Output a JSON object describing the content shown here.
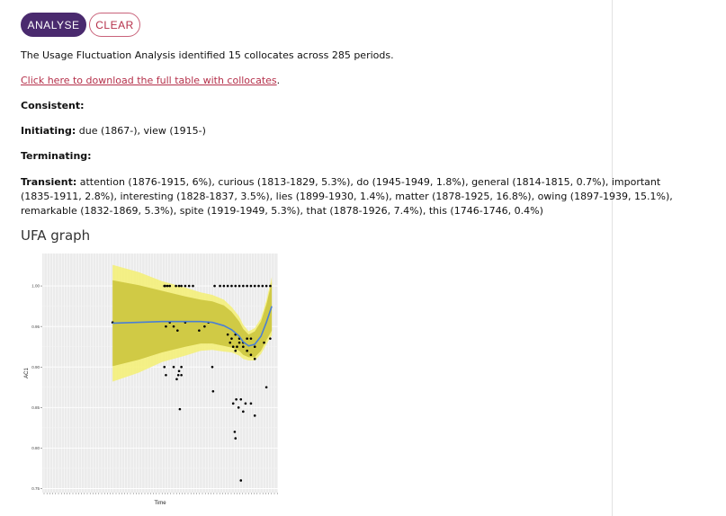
{
  "toolbar": {
    "analyse_label": "ANALYSE",
    "clear_label": "CLEAR"
  },
  "summary": "The Usage Fluctuation Analysis identified 15 collocates across 285 periods.",
  "download_link": "Click here to download the full table with collocates",
  "download_link_suffix": ".",
  "sections": {
    "consistent_label": "Consistent:",
    "consistent_value": "",
    "initiating_label": "Initiating:",
    "initiating_value": " due (1867-), view (1915-)",
    "terminating_label": "Terminating:",
    "terminating_value": "",
    "transient_label": "Transient:",
    "transient_value": " attention (1876-1915, 6%), curious (1813-1829, 5.3%), do (1945-1949, 1.8%), general (1814-1815, 0.7%), important (1835-1911, 2.8%), interesting (1828-1837, 3.5%), lies (1899-1930, 1.4%), matter (1878-1925, 16.8%), owing (1897-1939, 15.1%), remarkable (1832-1869, 5.3%), spite (1919-1949, 5.3%), that (1878-1926, 7.4%), this (1746-1746, 0.4%)"
  },
  "graph_title": "UFA graph",
  "chart_data": {
    "type": "scatter",
    "xlabel": "Time",
    "ylabel": "AC1",
    "yticks": [
      "0.75",
      "0.80",
      "0.85",
      "0.90",
      "0.95",
      "1.00"
    ],
    "ylim": [
      0.745,
      1.04
    ],
    "x_range": [
      1655,
      1960
    ],
    "grid": true,
    "smooth": {
      "x": [
        1746,
        1780,
        1810,
        1840,
        1860,
        1875,
        1890,
        1900,
        1910,
        1915,
        1922,
        1930,
        1938,
        1945,
        1952
      ],
      "y": [
        0.954,
        0.955,
        0.956,
        0.956,
        0.956,
        0.955,
        0.951,
        0.946,
        0.938,
        0.931,
        0.926,
        0.928,
        0.938,
        0.955,
        0.975
      ],
      "inner_band": [
        0.053,
        0.046,
        0.038,
        0.031,
        0.027,
        0.026,
        0.025,
        0.022,
        0.018,
        0.016,
        0.014,
        0.016,
        0.018,
        0.022,
        0.03
      ],
      "outer_band": [
        0.072,
        0.062,
        0.05,
        0.042,
        0.036,
        0.034,
        0.032,
        0.028,
        0.024,
        0.021,
        0.018,
        0.02,
        0.022,
        0.027,
        0.036
      ],
      "color": "#4a7fd4",
      "inner_band_color": "#c9c33a",
      "outer_band_color": "#f4f07a"
    },
    "points": {
      "x": [
        1746,
        1813,
        1814,
        1817,
        1820,
        1828,
        1832,
        1835,
        1840,
        1845,
        1850,
        1878,
        1885,
        1890,
        1895,
        1900,
        1905,
        1910,
        1915,
        1920,
        1925,
        1930,
        1935,
        1940,
        1945,
        1950,
        1815,
        1820,
        1825,
        1830,
        1840,
        1858,
        1865,
        1870,
        1895,
        1900,
        1905,
        1910,
        1915,
        1920,
        1925,
        1930,
        1942,
        1950,
        1813,
        1825,
        1832,
        1835,
        1875,
        1898,
        1902,
        1905,
        1907,
        1910,
        1915,
        1920,
        1925,
        1930,
        1815,
        1829,
        1831,
        1835,
        1876,
        1902,
        1906,
        1909,
        1912,
        1915,
        1918,
        1925,
        1930,
        1945,
        1833,
        1904,
        1905,
        1912
      ],
      "y": [
        0.955,
        1.0,
        1.0,
        1.0,
        1.0,
        1.0,
        1.0,
        1.0,
        1.0,
        1.0,
        1.0,
        1.0,
        1.0,
        1.0,
        1.0,
        1.0,
        1.0,
        1.0,
        1.0,
        1.0,
        1.0,
        1.0,
        1.0,
        1.0,
        1.0,
        1.0,
        0.95,
        0.955,
        0.95,
        0.945,
        0.955,
        0.945,
        0.95,
        0.955,
        0.94,
        0.935,
        0.94,
        0.935,
        0.93,
        0.935,
        0.935,
        0.925,
        0.93,
        0.935,
        0.9,
        0.9,
        0.895,
        0.9,
        0.9,
        0.93,
        0.925,
        0.92,
        0.925,
        0.93,
        0.925,
        0.92,
        0.915,
        0.91,
        0.89,
        0.885,
        0.89,
        0.89,
        0.87,
        0.855,
        0.86,
        0.85,
        0.86,
        0.845,
        0.855,
        0.855,
        0.84,
        0.875,
        0.848,
        0.82,
        0.812,
        0.76
      ]
    }
  }
}
